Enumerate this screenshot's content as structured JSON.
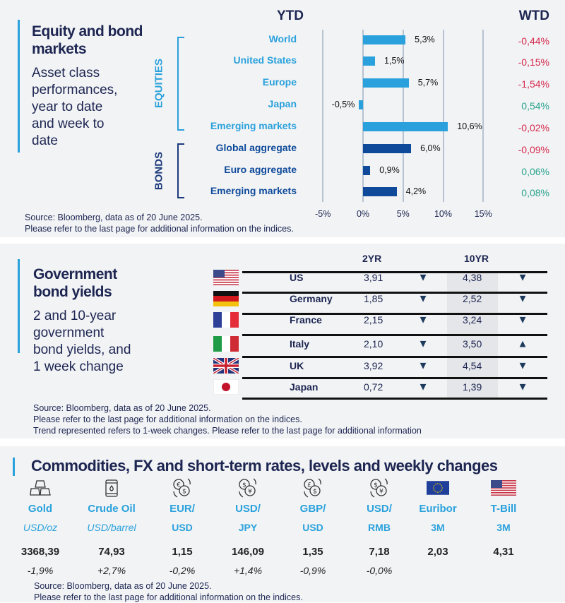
{
  "equity": {
    "title": "Equity and bond markets",
    "subtitle": [
      "Asset class",
      "performances,",
      "year to date",
      "and week to",
      "date"
    ],
    "ytd_header": "YTD",
    "wtd_header": "WTD",
    "group_equities": "EQUITIES",
    "group_bonds": "BONDS",
    "source": [
      "Source: Bloomberg, data as of 20 June 2025.",
      "Please refer to the last page for additional information on the indices."
    ]
  },
  "chart_data": {
    "type": "bar",
    "orientation": "horizontal",
    "categories": [
      "World",
      "United States",
      "Europe",
      "Japan",
      "Emerging  markets",
      "Global aggregate",
      "Euro aggregate",
      "Emerging  markets"
    ],
    "groups": [
      "EQUITIES",
      "EQUITIES",
      "EQUITIES",
      "EQUITIES",
      "EQUITIES",
      "BONDS",
      "BONDS",
      "BONDS"
    ],
    "values": [
      5.3,
      1.5,
      5.7,
      -0.5,
      10.6,
      6.0,
      0.9,
      4.2
    ],
    "value_labels": [
      "5,3%",
      "1,5%",
      "5,7%",
      "-0,5%",
      "10,6%",
      "6,0%",
      "0,9%",
      "4,2%"
    ],
    "wtd": [
      "-0,44%",
      "-0,15%",
      "-1,54%",
      "0,54%",
      "-0,02%",
      "-0,09%",
      "0,06%",
      "0,08%"
    ],
    "wtd_values": [
      -0.44,
      -0.15,
      -1.54,
      0.54,
      -0.02,
      -0.09,
      0.06,
      0.08
    ],
    "xlim": [
      -5,
      15
    ],
    "xticks": [
      -5,
      0,
      5,
      10,
      15
    ],
    "xtick_labels": [
      "-5%",
      "0%",
      "5%",
      "10%",
      "15%"
    ],
    "title": "YTD",
    "grid": true,
    "colors": {
      "equities": "#2aa1dc",
      "bonds": "#0f4a9a",
      "negative": "#d62a4e",
      "positive": "#2aa38c"
    }
  },
  "yields": {
    "title": "Government bond yields",
    "subtitle": [
      "2 and 10-year",
      "government",
      "bond yields, and",
      "1 week change"
    ],
    "headers": {
      "y2": "2YR",
      "y10": "10YR"
    },
    "rows": [
      {
        "country": "US",
        "flag": "us-flag-icon",
        "y2": "3,91",
        "t2": "down",
        "y10": "4,38",
        "t10": "down"
      },
      {
        "country": "Germany",
        "flag": "germany-flag-icon",
        "y2": "1,85",
        "t2": "down",
        "y10": "2,52",
        "t10": "down"
      },
      {
        "country": "France",
        "flag": "france-flag-icon",
        "y2": "2,15",
        "t2": "down",
        "y10": "3,24",
        "t10": "down"
      },
      {
        "country": "Italy",
        "flag": "italy-flag-icon",
        "y2": "2,10",
        "t2": "down",
        "y10": "3,50",
        "t10": "up"
      },
      {
        "country": "UK",
        "flag": "uk-flag-icon",
        "y2": "3,92",
        "t2": "down",
        "y10": "4,54",
        "t10": "down"
      },
      {
        "country": "Japan",
        "flag": "japan-flag-icon",
        "y2": "0,72",
        "t2": "down",
        "y10": "1,39",
        "t10": "down"
      }
    ],
    "arrows": {
      "down": "▼",
      "up": "▲"
    },
    "source": [
      "Source: Bloomberg, data as of 20 June 2025.",
      "Please refer to the last page for additional information on the indices.",
      "Trend represented refers to 1-week changes. Please refer to the last page for additional information"
    ]
  },
  "commodities": {
    "title": "Commodities, FX and short-term rates, levels and weekly changes",
    "items": [
      {
        "icon": "gold-bars-icon",
        "label": "Gold",
        "sub": "USD/oz",
        "sub_italic": true,
        "value": "3368,39",
        "change": "-1,9%"
      },
      {
        "icon": "oil-barrel-icon",
        "label": "Crude Oil",
        "sub": "USD/barrel",
        "sub_italic": true,
        "value": "74,93",
        "change": "+2,7%"
      },
      {
        "icon": "currency-exchange-icon",
        "symbol": "€",
        "label": "EUR/",
        "sub": "USD",
        "value": "1,15",
        "change": "-0,2%"
      },
      {
        "icon": "currency-exchange-icon",
        "symbol": "$",
        "label": "USD/",
        "sub": "JPY",
        "value": "146,09",
        "change": "+1,4%"
      },
      {
        "icon": "currency-exchange-icon",
        "symbol": "£",
        "label": "GBP/",
        "sub": "USD",
        "value": "1,35",
        "change": "-0,9%"
      },
      {
        "icon": "currency-exchange-icon",
        "symbol": "$",
        "label": "USD/",
        "sub": "RMB",
        "value": "7,18",
        "change": "-0,0%"
      },
      {
        "icon": "eu-flag-icon",
        "label": "Euribor",
        "sub": "3M",
        "value": "2,03",
        "change": ""
      },
      {
        "icon": "us-flag-icon",
        "label": "T-Bill",
        "sub": "3M",
        "value": "4,31",
        "change": ""
      }
    ],
    "source": [
      "Source: Bloomberg, data as of 20 June 2025.",
      "Please refer to the last page for additional information on the indices."
    ]
  }
}
